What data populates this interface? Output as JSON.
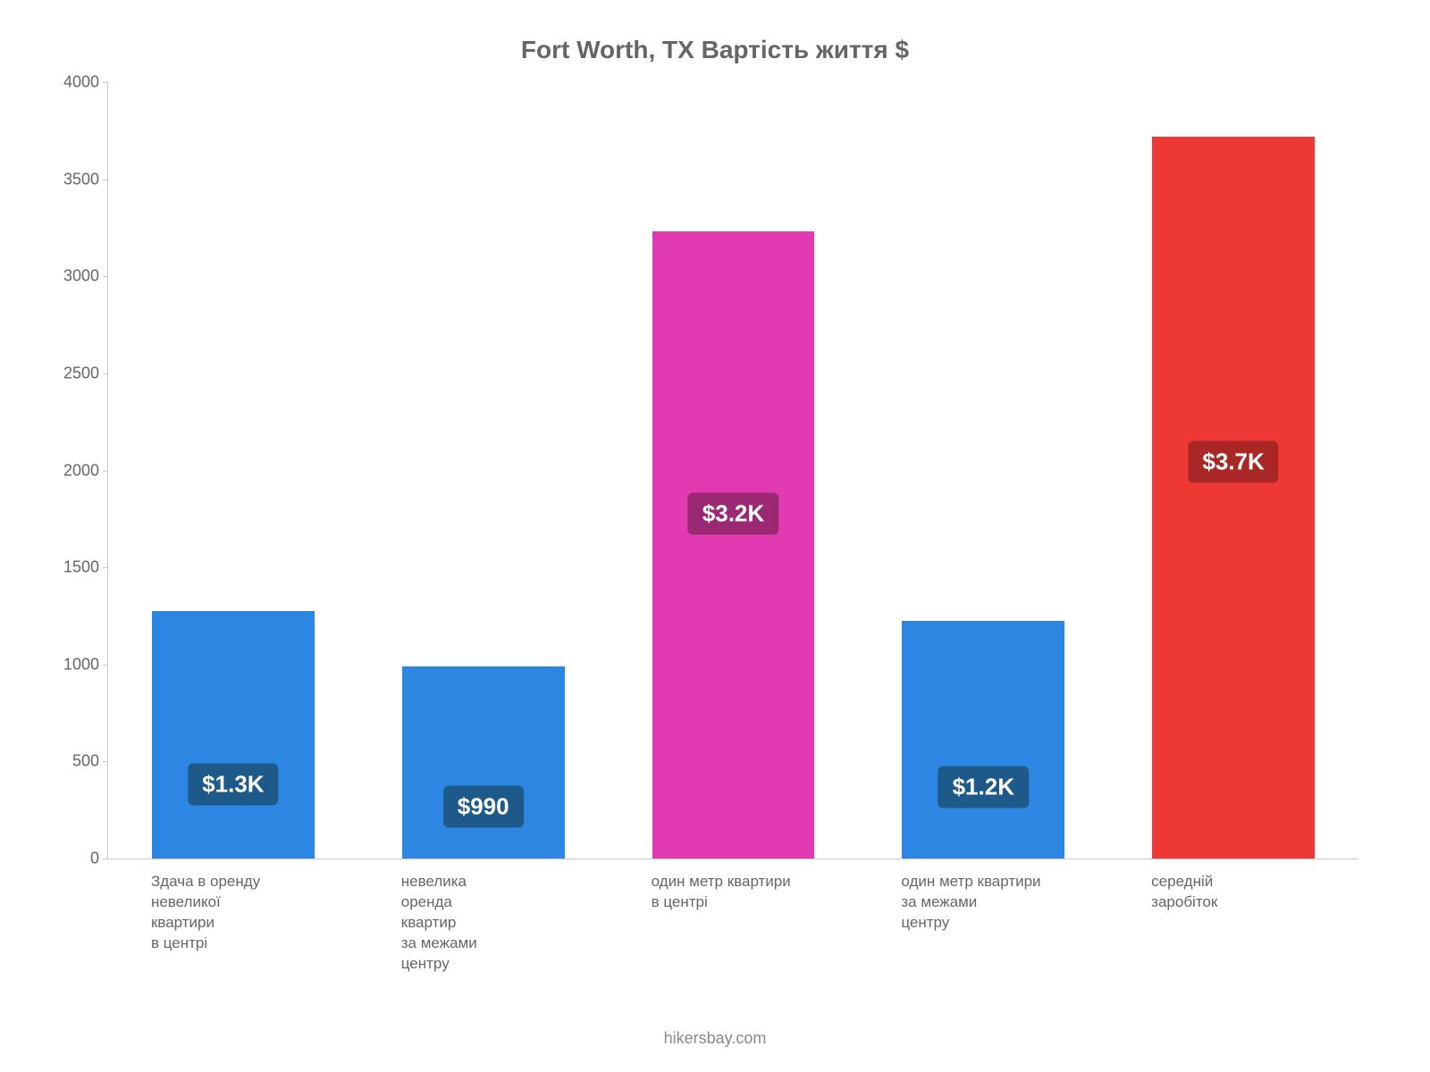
{
  "chart": {
    "type": "bar",
    "title": "Fort Worth, TX Вартість життя $",
    "title_fontsize": 28,
    "title_color": "#666666",
    "background_color": "#ffffff",
    "axis_color": "#c8c8c8",
    "tick_label_color": "#666666",
    "tick_label_fontsize": 18,
    "y": {
      "min": 0,
      "max": 4000,
      "ticks": [
        0,
        500,
        1000,
        1500,
        2000,
        2500,
        3000,
        3500,
        4000
      ]
    },
    "bar_width_pct": 13,
    "bars": [
      {
        "category_lines": [
          "Здача в оренду",
          "невеликої",
          "квартири",
          "в центрі"
        ],
        "value": 1275,
        "display_label": "$1.3K",
        "bar_color": "#2d87e2",
        "label_bg": "#1d5a8a",
        "label_y_pct": 30
      },
      {
        "category_lines": [
          "невелика",
          "оренда",
          "квартир",
          "за межами",
          "центру"
        ],
        "value": 990,
        "display_label": "$990",
        "bar_color": "#2d87e2",
        "label_bg": "#1d5a8a",
        "label_y_pct": 27
      },
      {
        "category_lines": [
          "один метр квартири",
          "в центрі"
        ],
        "value": 3230,
        "display_label": "$3.2K",
        "bar_color": "#e23ab0",
        "label_bg": "#9a2873",
        "label_y_pct": 55
      },
      {
        "category_lines": [
          "один метр квартири",
          "за межами",
          "центру"
        ],
        "value": 1225,
        "display_label": "$1.2K",
        "bar_color": "#2d87e2",
        "label_bg": "#1d5a8a",
        "label_y_pct": 30
      },
      {
        "category_lines": [
          "середній",
          "заробіток"
        ],
        "value": 3720,
        "display_label": "$3.7K",
        "bar_color": "#ee3833",
        "label_bg": "#a92724",
        "label_y_pct": 55
      }
    ],
    "footer": "hikersbay.com",
    "footer_color": "#888888"
  }
}
